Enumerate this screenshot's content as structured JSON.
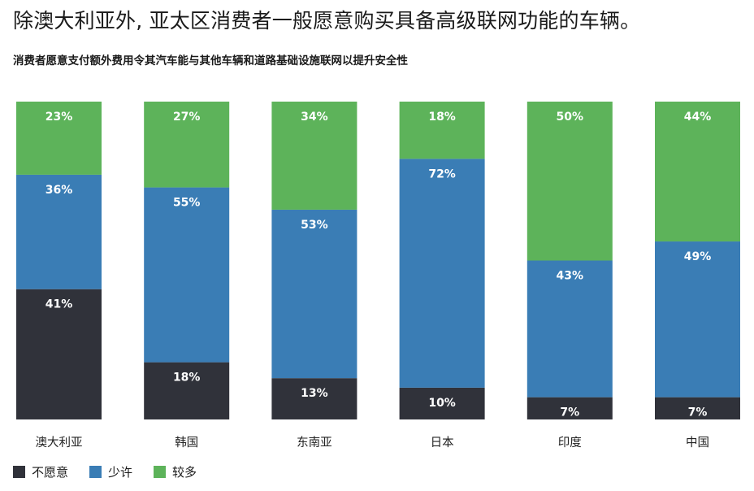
{
  "headline": "除澳大利亚外, 亚太区消费者一般愿意购买具备高级联网功能的车辆。",
  "colors": {
    "none": "#30323a",
    "little": "#3a7db5",
    "more": "#5db35a"
  },
  "chart_data": {
    "type": "bar",
    "stacked": true,
    "percent_stacked": true,
    "title": "消费者愿意支付额外费用令其汽车能与其他车辆和道路基础设施联网以提升安全性",
    "categories": [
      "澳大利亚",
      "韩国",
      "东南亚",
      "日本",
      "印度",
      "中国"
    ],
    "series": [
      {
        "name": "不愿意",
        "key": "none",
        "values": [
          41,
          18,
          13,
          10,
          7,
          7
        ],
        "labels": [
          "41%",
          "18%",
          "13%",
          "10%",
          "7%",
          "7%"
        ]
      },
      {
        "name": "少许",
        "key": "little",
        "values": [
          36,
          55,
          53,
          72,
          43,
          49
        ],
        "labels": [
          "36%",
          "55%",
          "53%",
          "72%",
          "43%",
          "49%"
        ]
      },
      {
        "name": "较多",
        "key": "more",
        "values": [
          23,
          27,
          34,
          18,
          50,
          44
        ],
        "labels": [
          "23%",
          "27%",
          "34%",
          "18%",
          "50%",
          "44%"
        ]
      }
    ],
    "ylim": [
      0,
      100
    ],
    "legend_position": "bottom-left",
    "grid": false
  }
}
